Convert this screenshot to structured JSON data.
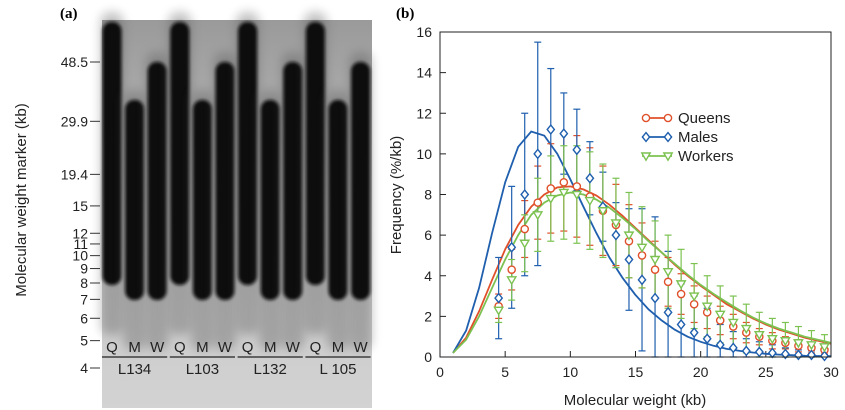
{
  "panel_a": {
    "label": "(a)",
    "ylabel": "Molecular weight marker (kb)",
    "marker_labels": [
      "48.5",
      "29.9",
      "19.4",
      "15",
      "12",
      "11",
      "10",
      "9",
      "8",
      "7",
      "6",
      "5",
      "4"
    ],
    "marker_kb": [
      48.5,
      29.9,
      19.4,
      15,
      12,
      11,
      10,
      9,
      8,
      7,
      6,
      5,
      4
    ],
    "lanes": [
      "Q",
      "M",
      "W",
      "Q",
      "M",
      "W",
      "Q",
      "M",
      "W",
      "Q",
      "M",
      "W"
    ],
    "groups": [
      "L134",
      "L103",
      "L132",
      "L 105"
    ]
  },
  "panel_b": {
    "label": "(b)",
    "chart_data": {
      "type": "line",
      "title": "",
      "xlabel": "Molecular weight (kb)",
      "ylabel": "Frequency (%/kb)",
      "xlim": [
        0,
        30
      ],
      "ylim": [
        0,
        16
      ],
      "xticks": [
        0,
        5,
        10,
        15,
        20,
        25,
        30
      ],
      "yticks": [
        0,
        2,
        4,
        6,
        8,
        10,
        12,
        14,
        16
      ],
      "legend_position": "upper-right",
      "x": [
        4.5,
        5.5,
        6.5,
        7.5,
        8.5,
        9.5,
        10.5,
        11.5,
        12.5,
        13.5,
        14.5,
        15.5,
        16.5,
        17.5,
        18.5,
        19.5,
        20.5,
        21.5,
        22.5,
        23.5,
        24.5,
        25.5,
        26.5,
        27.5,
        28.5,
        29.5
      ],
      "series": [
        {
          "name": "Queens",
          "color": "#e0502a",
          "marker": "circle",
          "values": [
            2.5,
            4.3,
            6.3,
            7.6,
            8.3,
            8.6,
            8.4,
            7.9,
            7.2,
            6.5,
            5.7,
            5.0,
            4.3,
            3.7,
            3.1,
            2.6,
            2.2,
            1.8,
            1.5,
            1.2,
            1.0,
            0.8,
            0.7,
            0.55,
            0.45,
            0.35
          ],
          "errors": [
            0.6,
            1.0,
            1.4,
            1.8,
            2.2,
            2.4,
            2.5,
            2.4,
            2.2,
            2.0,
            1.8,
            1.6,
            1.4,
            1.2,
            1.0,
            0.9,
            0.8,
            0.7,
            0.6,
            0.5,
            0.4,
            0.4,
            0.3,
            0.3,
            0.25,
            0.2
          ],
          "fit": [
            0.2,
            0.95,
            2.25,
            3.8,
            5.3,
            6.5,
            7.4,
            8.0,
            8.35,
            8.4,
            8.25,
            7.95,
            7.5,
            6.95,
            6.35,
            5.75,
            5.15,
            4.55,
            4.0,
            3.5,
            3.05,
            2.6,
            2.25,
            1.9,
            1.6,
            1.35,
            1.15,
            0.95,
            0.8,
            0.65,
            0.55
          ]
        },
        {
          "name": "Males",
          "color": "#1f5fae",
          "marker": "diamond",
          "values": [
            2.9,
            5.4,
            8.0,
            10.0,
            11.2,
            11.0,
            10.2,
            8.8,
            7.4,
            6.0,
            4.8,
            3.8,
            2.9,
            2.2,
            1.6,
            1.2,
            0.9,
            0.6,
            0.45,
            0.3,
            0.25,
            0.2,
            0.15,
            0.1,
            0.1,
            0.05
          ],
          "errors": [
            2.0,
            3.0,
            4.0,
            5.5,
            3.0,
            2.0,
            2.0,
            1.8,
            1.7,
            1.6,
            2.5,
            3.5,
            4.0,
            3.0,
            2.0,
            1.8,
            1.5,
            1.0,
            0.8,
            0.6,
            0.5,
            0.4,
            0.3,
            0.25,
            0.2,
            0.2
          ],
          "fit": [
            0.2,
            1.3,
            3.4,
            6.1,
            8.6,
            10.35,
            11.1,
            10.9,
            10.0,
            8.75,
            7.4,
            6.1,
            4.9,
            3.9,
            3.05,
            2.35,
            1.8,
            1.35,
            1.0,
            0.75,
            0.55,
            0.4,
            0.3,
            0.22,
            0.16,
            0.12,
            0.09,
            0.06,
            0.05,
            0.04,
            0.03
          ]
        },
        {
          "name": "Workers",
          "color": "#7cc251",
          "marker": "triangle-down",
          "values": [
            2.3,
            3.8,
            5.6,
            7.0,
            7.8,
            8.1,
            8.0,
            7.7,
            7.2,
            6.6,
            6.0,
            5.4,
            4.8,
            4.2,
            3.6,
            3.0,
            2.5,
            2.1,
            1.7,
            1.4,
            1.1,
            0.9,
            0.8,
            0.7,
            0.6,
            0.5
          ],
          "errors": [
            0.6,
            1.0,
            1.4,
            1.8,
            2.1,
            2.3,
            2.4,
            2.4,
            2.3,
            2.2,
            2.1,
            2.0,
            1.9,
            1.8,
            1.7,
            1.6,
            1.5,
            1.4,
            1.3,
            1.2,
            1.1,
            1.0,
            0.9,
            0.8,
            0.7,
            0.6
          ],
          "fit": [
            0.2,
            0.85,
            2.0,
            3.4,
            4.8,
            6.0,
            7.0,
            7.6,
            7.95,
            8.1,
            8.0,
            7.75,
            7.35,
            6.85,
            6.3,
            5.7,
            5.15,
            4.6,
            4.05,
            3.55,
            3.1,
            2.7,
            2.3,
            1.95,
            1.65,
            1.4,
            1.2,
            1.0,
            0.85,
            0.7,
            0.6
          ]
        }
      ],
      "fit_x": [
        1,
        2,
        3,
        4,
        5,
        6,
        7,
        8,
        9,
        10,
        11,
        12,
        13,
        14,
        15,
        16,
        17,
        18,
        19,
        20,
        21,
        22,
        23,
        24,
        25,
        26,
        27,
        28,
        29,
        30,
        31
      ]
    }
  }
}
